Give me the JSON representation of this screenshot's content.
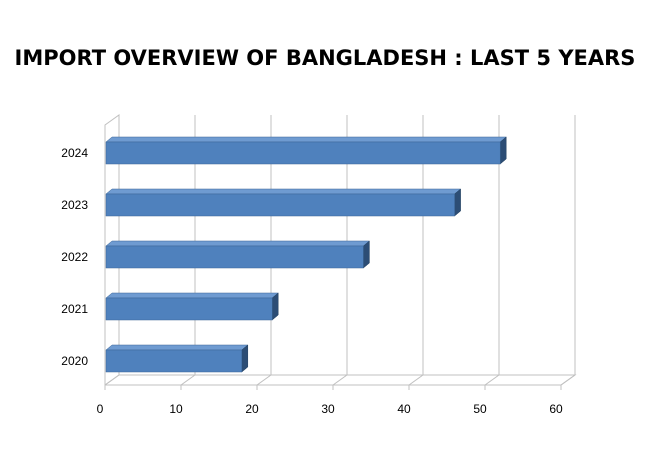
{
  "chart_data": {
    "type": "bar",
    "orientation": "horizontal",
    "title": "IMPORT OVERVIEW OF BANGLADESH : LAST 5 YEARS",
    "xlabel": "",
    "ylabel": "",
    "categories": [
      "2020",
      "2021",
      "2022",
      "2023",
      "2024"
    ],
    "values": [
      18,
      22,
      34,
      46,
      52
    ],
    "xlim": [
      0,
      60
    ],
    "xticks": [
      0,
      10,
      20,
      30,
      40,
      50,
      60
    ],
    "grid": true,
    "legend": "none",
    "style": "3d",
    "colors": {
      "bar_front": "#4f81bd",
      "bar_top": "#6f9bd1",
      "bar_side": "#2c4d75",
      "grid": "#c0c0c0"
    }
  }
}
